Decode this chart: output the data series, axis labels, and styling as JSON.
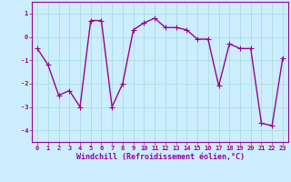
{
  "x": [
    0,
    1,
    2,
    3,
    4,
    5,
    6,
    7,
    8,
    9,
    10,
    11,
    12,
    13,
    14,
    15,
    16,
    17,
    18,
    19,
    20,
    21,
    22,
    23
  ],
  "y": [
    -0.5,
    -1.2,
    -2.5,
    -2.3,
    -3.0,
    0.7,
    0.7,
    -3.0,
    -2.0,
    0.3,
    0.6,
    0.8,
    0.4,
    0.4,
    0.3,
    -0.1,
    -0.1,
    -2.1,
    -0.3,
    -0.5,
    -0.5,
    -3.7,
    -3.8,
    -0.9
  ],
  "line_color": "#990099",
  "marker": "s",
  "marker_size": 2.0,
  "background_color": "#cceeff",
  "grid_color": "#aadddd",
  "xlabel": "Windchill (Refroidissement éolien,°C)",
  "xlim": [
    -0.5,
    23.5
  ],
  "ylim": [
    -4.5,
    1.5
  ],
  "yticks": [
    -4,
    -3,
    -2,
    -1,
    0,
    1
  ],
  "xticks": [
    0,
    1,
    2,
    3,
    4,
    5,
    6,
    7,
    8,
    9,
    10,
    11,
    12,
    13,
    14,
    15,
    16,
    17,
    18,
    19,
    20,
    21,
    22,
    23
  ],
  "tick_fontsize": 5.0,
  "xlabel_fontsize": 6.0,
  "line_width": 1.0
}
